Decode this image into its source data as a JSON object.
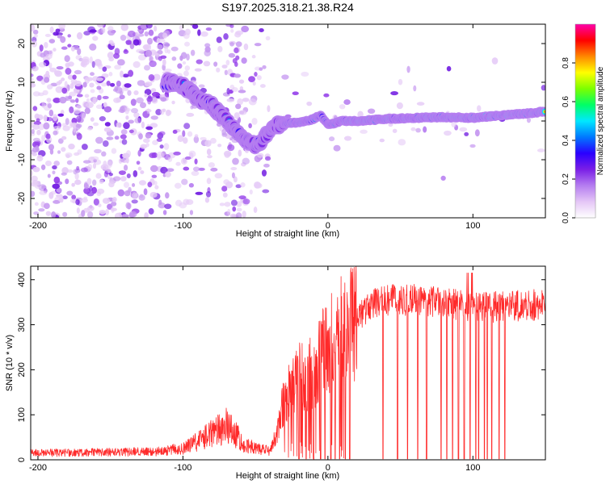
{
  "title": "S197.2025.318.21.38.R24",
  "chart_data": [
    {
      "type": "heatmap",
      "xlabel": "Height of straight line (km)",
      "ylabel": "Frequency (Hz)",
      "xlim": [
        -205,
        150
      ],
      "ylim": [
        -25,
        25
      ],
      "xticks": [
        -200,
        -100,
        0,
        100
      ],
      "yticks": [
        -20,
        -10,
        0,
        10,
        20
      ],
      "colorbar": {
        "label": "Normalized spectral amplitude",
        "range": [
          0,
          1
        ],
        "ticks": [
          "0.0",
          "0.2",
          "0.4",
          "0.6",
          "0.8"
        ],
        "tick_values": [
          0,
          0.2,
          0.4,
          0.6,
          0.8
        ],
        "colormap": [
          "#ffffff",
          "#e4c6f6",
          "#b57df0",
          "#7a1fe6",
          "#2a00ff",
          "#0078ff",
          "#00e8ff",
          "#00ff66",
          "#7cff00",
          "#ffff00",
          "#ff8800",
          "#ff0000",
          "#ff00aa"
        ]
      },
      "ridge": {
        "x": [
          -110,
          -100,
          -90,
          -80,
          -70,
          -60,
          -50,
          -45,
          -40,
          -35,
          -30,
          -20,
          -10,
          -5,
          0,
          10,
          20,
          40,
          60,
          80,
          100,
          120,
          140,
          150
        ],
        "y": [
          10,
          9,
          6,
          4,
          0,
          -4,
          -6,
          -5,
          -2,
          -1,
          -0.5,
          -0.5,
          0.5,
          1.5,
          -1,
          0,
          0,
          0.5,
          0.8,
          1,
          0.8,
          1.5,
          2,
          2.5
        ]
      }
    },
    {
      "type": "line",
      "xlabel": "Height of straight line (km)",
      "ylabel": "SNR (10 * v/v)",
      "xlim": [
        -205,
        150
      ],
      "ylim": [
        0,
        430
      ],
      "xticks": [
        -200,
        -100,
        0,
        100
      ],
      "yticks": [
        0,
        100,
        200,
        300,
        400
      ],
      "color": "#ff2a2a",
      "envelope": {
        "x": [
          -205,
          -120,
          -100,
          -90,
          -80,
          -70,
          -65,
          -60,
          -50,
          -40,
          -35,
          -30,
          -20,
          -10,
          0,
          10,
          20,
          30,
          40,
          60,
          80,
          100,
          120,
          150
        ],
        "y": [
          15,
          18,
          25,
          40,
          60,
          75,
          65,
          40,
          25,
          20,
          60,
          140,
          180,
          200,
          250,
          290,
          320,
          345,
          355,
          355,
          350,
          340,
          340,
          345
        ]
      },
      "dropouts_x": [
        -20,
        -15,
        -10,
        -5,
        -2,
        2,
        5,
        8,
        12,
        15,
        38,
        48,
        55,
        62,
        68,
        78,
        82,
        86,
        90,
        94,
        98,
        102,
        104,
        108,
        110,
        113,
        118,
        122
      ]
    }
  ]
}
